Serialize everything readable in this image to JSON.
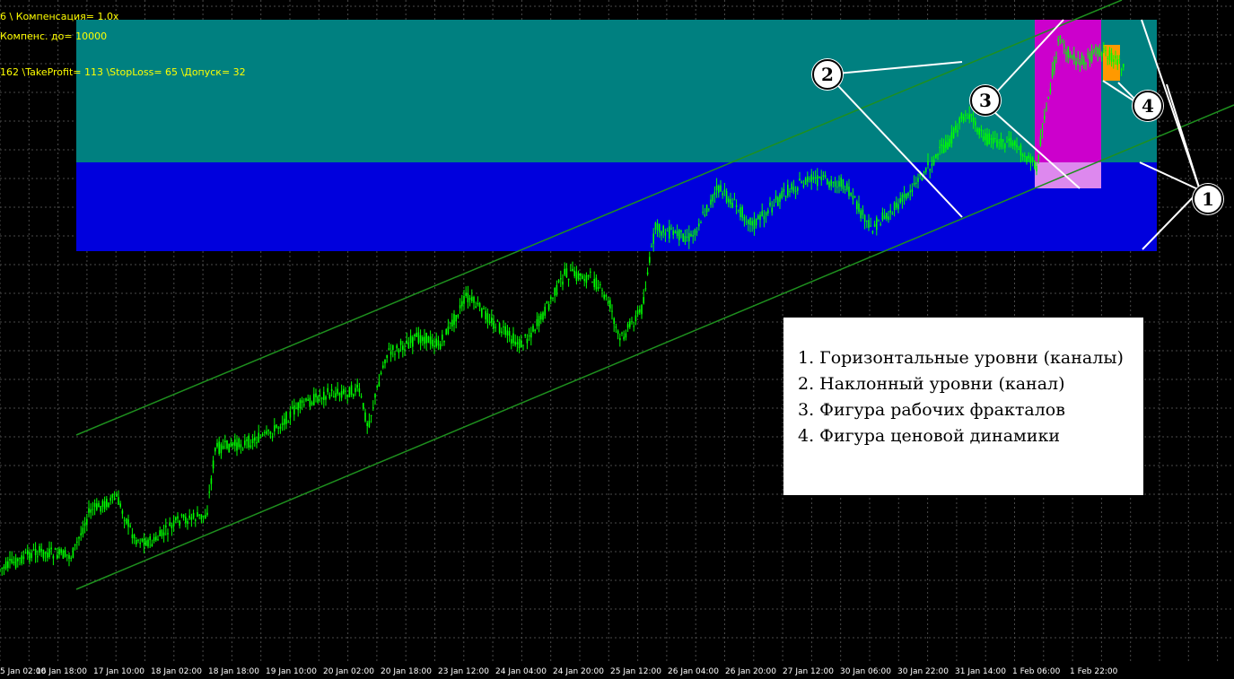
{
  "overlay": {
    "line1": "6 \\ Компенсация= 1.0x",
    "line2": "Компенс. до= 10000",
    "line3": "162 \\TakeProfit= 113 \\StopLoss= 65 \\Допуск= 32"
  },
  "markers": [
    "1",
    "2",
    "3",
    "4"
  ],
  "legend": {
    "items": [
      "1. Горизонтальные уровни (каналы)",
      "2. Наклонный уровни (канал)",
      "3. Фигура рабочих фракталов",
      "4. Фигура ценовой динамики"
    ]
  },
  "time_axis": [
    "5 Jan 02:00",
    "16 Jan 18:00",
    "17 Jan 10:00",
    "18 Jan 02:00",
    "18 Jan 18:00",
    "19 Jan 10:00",
    "20 Jan 02:00",
    "20 Jan 18:00",
    "23 Jan 12:00",
    "24 Jan 04:00",
    "24 Jan 20:00",
    "25 Jan 12:00",
    "26 Jan 04:00",
    "26 Jan 20:00",
    "27 Jan 12:00",
    "30 Jan 06:00",
    "30 Jan 22:00",
    "31 Jan 14:00",
    "1 Feb 06:00",
    "1 Feb 22:00"
  ],
  "colors": {
    "background": "#000000",
    "grid": "#4a4a4a",
    "candles": "#00FF00",
    "channel": "#1E8F1E",
    "upper_zone": "#008080",
    "lower_zone": "#0000DD",
    "fractal_zone": "#CC00CC",
    "fractal_zone_bottom": "#DD88EE",
    "price_dynamics_box": "#FF9900",
    "overlay_text": "#FFFF00"
  }
}
